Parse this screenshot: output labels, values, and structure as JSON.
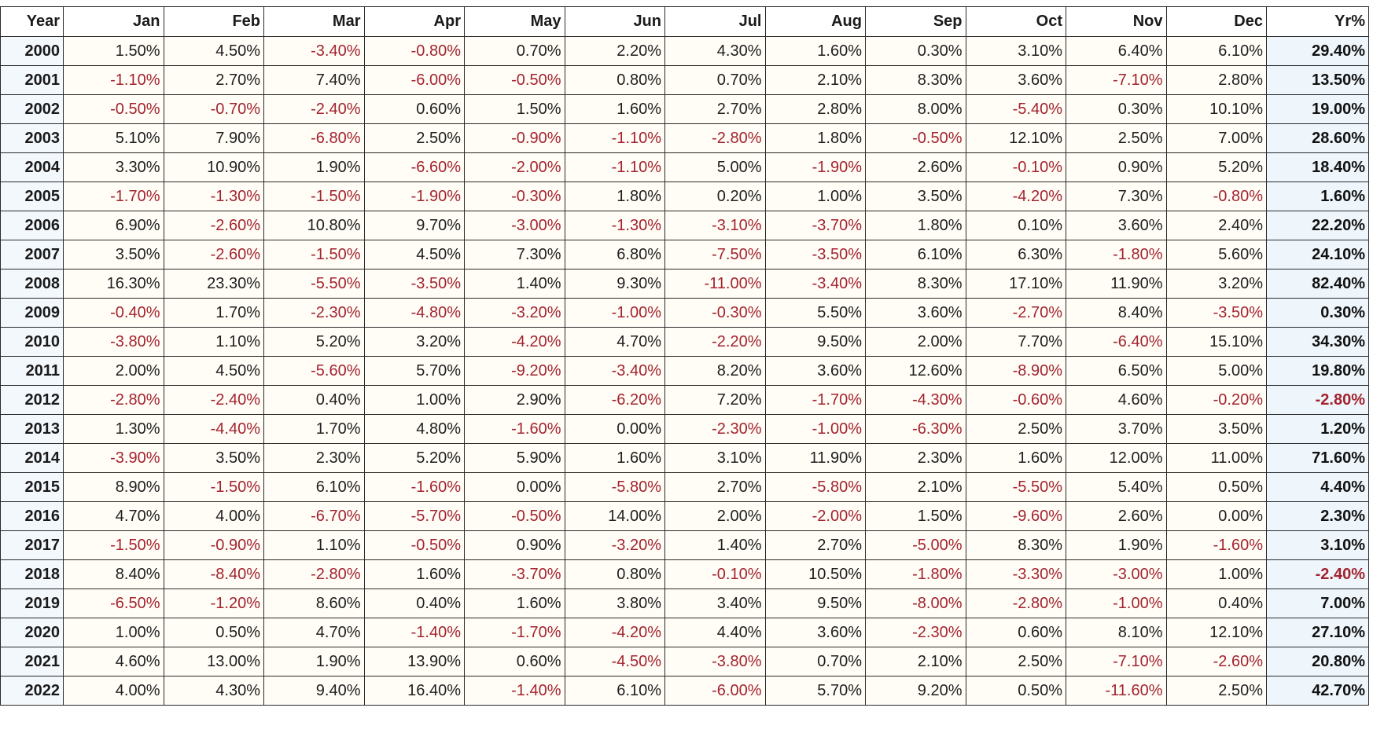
{
  "table": {
    "headers": [
      "Year",
      "Jan",
      "Feb",
      "Mar",
      "Apr",
      "May",
      "Jun",
      "Jul",
      "Aug",
      "Sep",
      "Oct",
      "Nov",
      "Dec",
      "Yr%"
    ],
    "rows": [
      [
        "2000",
        "1.50%",
        "4.50%",
        "-3.40%",
        "-0.80%",
        "0.70%",
        "2.20%",
        "4.30%",
        "1.60%",
        "0.30%",
        "3.10%",
        "6.40%",
        "6.10%",
        "29.40%"
      ],
      [
        "2001",
        "-1.10%",
        "2.70%",
        "7.40%",
        "-6.00%",
        "-0.50%",
        "0.80%",
        "0.70%",
        "2.10%",
        "8.30%",
        "3.60%",
        "-7.10%",
        "2.80%",
        "13.50%"
      ],
      [
        "2002",
        "-0.50%",
        "-0.70%",
        "-2.40%",
        "0.60%",
        "1.50%",
        "1.60%",
        "2.70%",
        "2.80%",
        "8.00%",
        "-5.40%",
        "0.30%",
        "10.10%",
        "19.00%"
      ],
      [
        "2003",
        "5.10%",
        "7.90%",
        "-6.80%",
        "2.50%",
        "-0.90%",
        "-1.10%",
        "-2.80%",
        "1.80%",
        "-0.50%",
        "12.10%",
        "2.50%",
        "7.00%",
        "28.60%"
      ],
      [
        "2004",
        "3.30%",
        "10.90%",
        "1.90%",
        "-6.60%",
        "-2.00%",
        "-1.10%",
        "5.00%",
        "-1.90%",
        "2.60%",
        "-0.10%",
        "0.90%",
        "5.20%",
        "18.40%"
      ],
      [
        "2005",
        "-1.70%",
        "-1.30%",
        "-1.50%",
        "-1.90%",
        "-0.30%",
        "1.80%",
        "0.20%",
        "1.00%",
        "3.50%",
        "-4.20%",
        "7.30%",
        "-0.80%",
        "1.60%"
      ],
      [
        "2006",
        "6.90%",
        "-2.60%",
        "10.80%",
        "9.70%",
        "-3.00%",
        "-1.30%",
        "-3.10%",
        "-3.70%",
        "1.80%",
        "0.10%",
        "3.60%",
        "2.40%",
        "22.20%"
      ],
      [
        "2007",
        "3.50%",
        "-2.60%",
        "-1.50%",
        "4.50%",
        "7.30%",
        "6.80%",
        "-7.50%",
        "-3.50%",
        "6.10%",
        "6.30%",
        "-1.80%",
        "5.60%",
        "24.10%"
      ],
      [
        "2008",
        "16.30%",
        "23.30%",
        "-5.50%",
        "-3.50%",
        "1.40%",
        "9.30%",
        "-11.00%",
        "-3.40%",
        "8.30%",
        "17.10%",
        "11.90%",
        "3.20%",
        "82.40%"
      ],
      [
        "2009",
        "-0.40%",
        "1.70%",
        "-2.30%",
        "-4.80%",
        "-3.20%",
        "-1.00%",
        "-0.30%",
        "5.50%",
        "3.60%",
        "-2.70%",
        "8.40%",
        "-3.50%",
        "0.30%"
      ],
      [
        "2010",
        "-3.80%",
        "1.10%",
        "5.20%",
        "3.20%",
        "-4.20%",
        "4.70%",
        "-2.20%",
        "9.50%",
        "2.00%",
        "7.70%",
        "-6.40%",
        "15.10%",
        "34.30%"
      ],
      [
        "2011",
        "2.00%",
        "4.50%",
        "-5.60%",
        "5.70%",
        "-9.20%",
        "-3.40%",
        "8.20%",
        "3.60%",
        "12.60%",
        "-8.90%",
        "6.50%",
        "5.00%",
        "19.80%"
      ],
      [
        "2012",
        "-2.80%",
        "-2.40%",
        "0.40%",
        "1.00%",
        "2.90%",
        "-6.20%",
        "7.20%",
        "-1.70%",
        "-4.30%",
        "-0.60%",
        "4.60%",
        "-0.20%",
        "-2.80%"
      ],
      [
        "2013",
        "1.30%",
        "-4.40%",
        "1.70%",
        "4.80%",
        "-1.60%",
        "0.00%",
        "-2.30%",
        "-1.00%",
        "-6.30%",
        "2.50%",
        "3.70%",
        "3.50%",
        "1.20%"
      ],
      [
        "2014",
        "-3.90%",
        "3.50%",
        "2.30%",
        "5.20%",
        "5.90%",
        "1.60%",
        "3.10%",
        "11.90%",
        "2.30%",
        "1.60%",
        "12.00%",
        "11.00%",
        "71.60%"
      ],
      [
        "2015",
        "8.90%",
        "-1.50%",
        "6.10%",
        "-1.60%",
        "0.00%",
        "-5.80%",
        "2.70%",
        "-5.80%",
        "2.10%",
        "-5.50%",
        "5.40%",
        "0.50%",
        "4.40%"
      ],
      [
        "2016",
        "4.70%",
        "4.00%",
        "-6.70%",
        "-5.70%",
        "-0.50%",
        "14.00%",
        "2.00%",
        "-2.00%",
        "1.50%",
        "-9.60%",
        "2.60%",
        "0.00%",
        "2.30%"
      ],
      [
        "2017",
        "-1.50%",
        "-0.90%",
        "1.10%",
        "-0.50%",
        "0.90%",
        "-3.20%",
        "1.40%",
        "2.70%",
        "-5.00%",
        "8.30%",
        "1.90%",
        "-1.60%",
        "3.10%"
      ],
      [
        "2018",
        "8.40%",
        "-8.40%",
        "-2.80%",
        "1.60%",
        "-3.70%",
        "0.80%",
        "-0.10%",
        "10.50%",
        "-1.80%",
        "-3.30%",
        "-3.00%",
        "1.00%",
        "-2.40%"
      ],
      [
        "2019",
        "-6.50%",
        "-1.20%",
        "8.60%",
        "0.40%",
        "1.60%",
        "3.80%",
        "3.40%",
        "9.50%",
        "-8.00%",
        "-2.80%",
        "-1.00%",
        "0.40%",
        "7.00%"
      ],
      [
        "2020",
        "1.00%",
        "0.50%",
        "4.70%",
        "-1.40%",
        "-1.70%",
        "-4.20%",
        "4.40%",
        "3.60%",
        "-2.30%",
        "0.60%",
        "8.10%",
        "12.10%",
        "27.10%"
      ],
      [
        "2021",
        "4.60%",
        "13.00%",
        "1.90%",
        "13.90%",
        "0.60%",
        "-4.50%",
        "-3.80%",
        "0.70%",
        "2.10%",
        "2.50%",
        "-7.10%",
        "-2.60%",
        "20.80%"
      ],
      [
        "2022",
        "4.00%",
        "4.30%",
        "9.40%",
        "16.40%",
        "-1.40%",
        "6.10%",
        "-6.00%",
        "5.70%",
        "9.20%",
        "0.50%",
        "-11.60%",
        "2.50%",
        "42.70%"
      ]
    ]
  },
  "colors": {
    "negative": "#a3232f",
    "text": "#1e1e1e",
    "grid": "#2a2a2a"
  }
}
